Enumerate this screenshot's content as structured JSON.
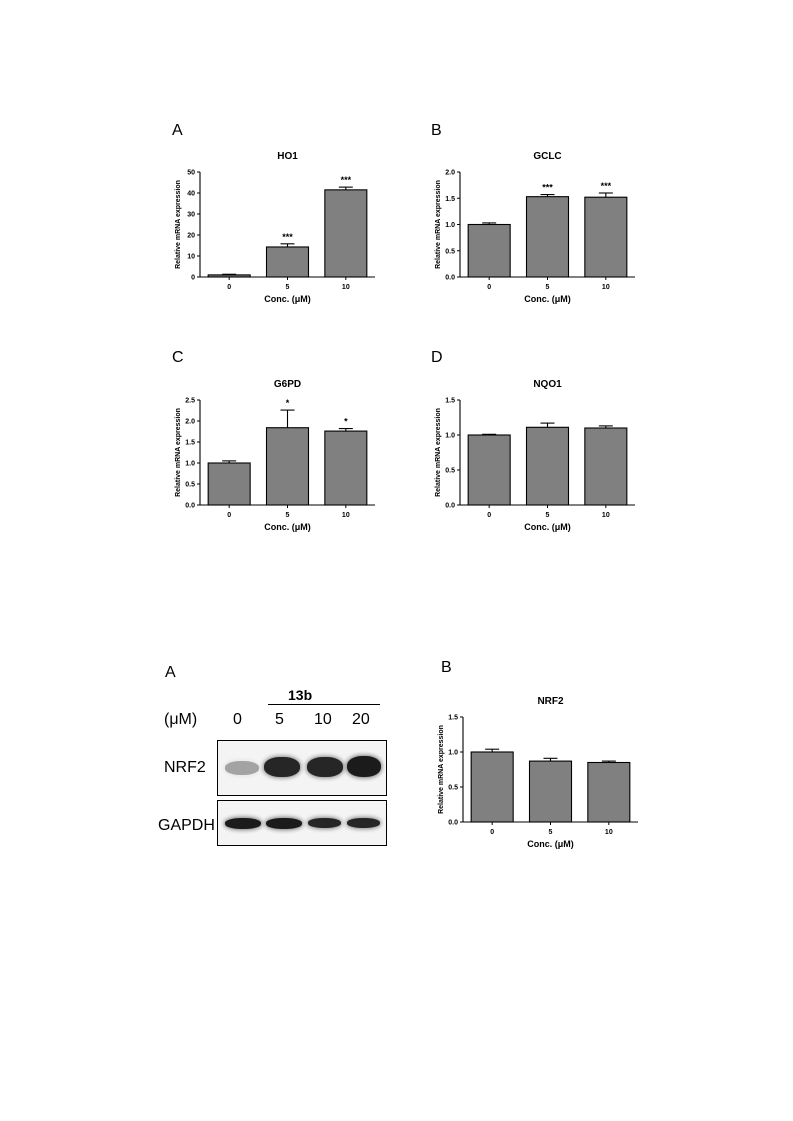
{
  "panels_top": [
    "A",
    "B",
    "C",
    "D"
  ],
  "panels_bottom": [
    "A",
    "B"
  ],
  "chart_data": [
    {
      "type": "bar",
      "title": "HO1",
      "xlabel": "Conc. (μM)",
      "ylabel": "Relative mRNA expression",
      "categories": [
        "0",
        "5",
        "10"
      ],
      "values": [
        1.0,
        14.3,
        41.5
      ],
      "errors": [
        0.3,
        1.5,
        1.3
      ],
      "significance": [
        "",
        "***",
        "***"
      ],
      "ylim": [
        0,
        50
      ],
      "yticks": [
        "0",
        "10",
        "20",
        "30",
        "40",
        "50"
      ],
      "ytick_values": [
        0,
        10,
        20,
        30,
        40,
        50
      ]
    },
    {
      "type": "bar",
      "title": "GCLC",
      "xlabel": "Conc. (μM)",
      "ylabel": "Relative mRNA expression",
      "categories": [
        "0",
        "5",
        "10"
      ],
      "values": [
        1.0,
        1.53,
        1.52
      ],
      "errors": [
        0.03,
        0.04,
        0.08
      ],
      "significance": [
        "",
        "***",
        "***"
      ],
      "ylim": [
        0,
        2.0
      ],
      "yticks": [
        "0.0",
        "0.5",
        "1.0",
        "1.5",
        "2.0"
      ],
      "ytick_values": [
        0,
        0.5,
        1.0,
        1.5,
        2.0
      ]
    },
    {
      "type": "bar",
      "title": "G6PD",
      "xlabel": "Conc. (μM)",
      "ylabel": "Relative mRNA expression",
      "categories": [
        "0",
        "5",
        "10"
      ],
      "values": [
        1.0,
        1.84,
        1.76
      ],
      "errors": [
        0.05,
        0.42,
        0.06
      ],
      "significance": [
        "",
        "*",
        "*"
      ],
      "ylim": [
        0,
        2.5
      ],
      "yticks": [
        "0.0",
        "0.5",
        "1.0",
        "1.5",
        "2.0",
        "2.5"
      ],
      "ytick_values": [
        0,
        0.5,
        1.0,
        1.5,
        2.0,
        2.5
      ]
    },
    {
      "type": "bar",
      "title": "NQO1",
      "xlabel": "Conc. (μM)",
      "ylabel": "Relative mRNA expression",
      "categories": [
        "0",
        "5",
        "10"
      ],
      "values": [
        1.0,
        1.11,
        1.1
      ],
      "errors": [
        0.01,
        0.06,
        0.03
      ],
      "significance": [
        "",
        "",
        ""
      ],
      "ylim": [
        0,
        1.5
      ],
      "yticks": [
        "0.0",
        "0.5",
        "1.0",
        "1.5"
      ],
      "ytick_values": [
        0,
        0.5,
        1.0,
        1.5
      ]
    },
    {
      "type": "bar",
      "title": "NRF2",
      "xlabel": "Conc. (μM)",
      "ylabel": "Relative mRNA expression",
      "categories": [
        "0",
        "5",
        "10"
      ],
      "values": [
        1.0,
        0.87,
        0.85
      ],
      "errors": [
        0.04,
        0.04,
        0.02
      ],
      "significance": [
        "",
        "",
        ""
      ],
      "ylim": [
        0,
        1.5
      ],
      "yticks": [
        "0.0",
        "0.5",
        "1.0",
        "1.5"
      ],
      "ytick_values": [
        0,
        0.5,
        1.0,
        1.5
      ]
    }
  ],
  "blot": {
    "compound": "13b",
    "unit": "(μM)",
    "lanes": [
      "0",
      "5",
      "10",
      "20"
    ],
    "rows": [
      "NRF2",
      "GAPDH"
    ],
    "band_intensity": {
      "NRF2": [
        0.35,
        0.9,
        0.9,
        0.95
      ],
      "GAPDH": [
        0.95,
        0.95,
        0.9,
        0.9
      ]
    }
  },
  "colors": {
    "bar": "#808080",
    "axis": "#000000",
    "band": "#101010"
  }
}
